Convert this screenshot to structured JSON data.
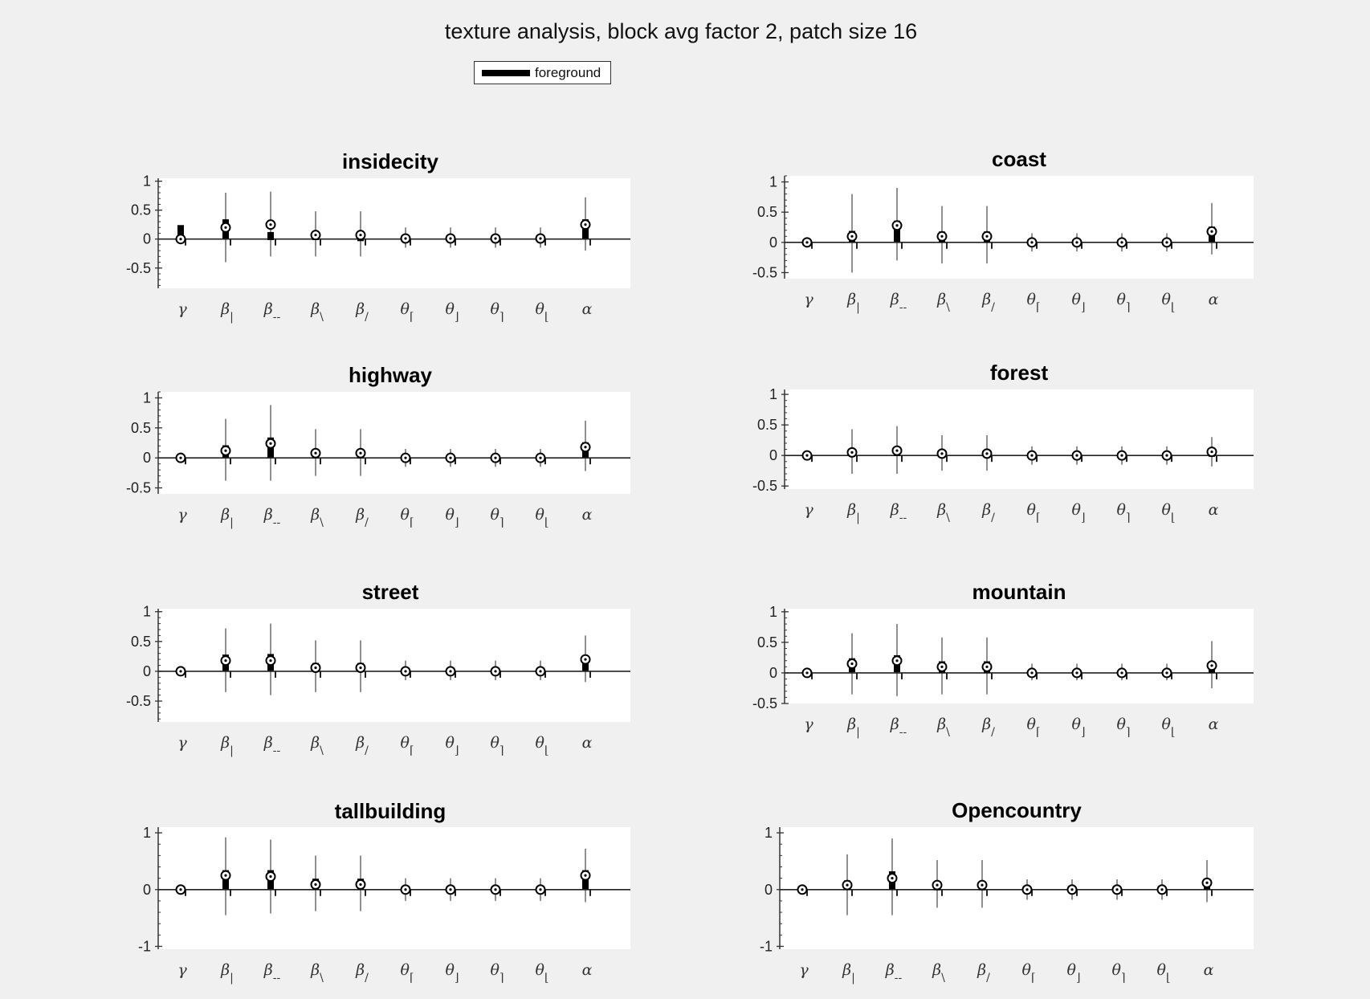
{
  "figure_title": "texture analysis, block avg factor 2, patch size 16",
  "legend": {
    "label": "foreground",
    "color": "#000000"
  },
  "categories": [
    {
      "base": "γ",
      "sub": ""
    },
    {
      "base": "β",
      "sub": "|"
    },
    {
      "base": "β",
      "sub": "--"
    },
    {
      "base": "β",
      "sub": "\\"
    },
    {
      "base": "β",
      "sub": "/"
    },
    {
      "base": "θ",
      "sub": "⌈"
    },
    {
      "base": "θ",
      "sub": "⌋"
    },
    {
      "base": "θ",
      "sub": "⌉"
    },
    {
      "base": "θ",
      "sub": "⌊"
    },
    {
      "base": "α",
      "sub": ""
    }
  ],
  "chart_data": [
    {
      "type": "scatter",
      "title": "insidecity",
      "ylim": [
        -0.85,
        1.05
      ],
      "yticks": [
        1,
        0.5,
        0,
        -0.5
      ],
      "square": [
        0.2,
        0.3,
        0.08,
        0.08,
        0.02,
        0.02,
        0.02,
        0.02,
        0.02,
        0.3
      ],
      "circle": [
        0.0,
        0.2,
        0.25,
        0.07,
        0.07,
        0.01,
        0.01,
        0.01,
        0.01,
        0.25
      ],
      "err_low": [
        -0.05,
        -0.4,
        -0.3,
        -0.3,
        -0.3,
        -0.15,
        -0.15,
        -0.15,
        -0.15,
        -0.2
      ],
      "err_high": [
        0.05,
        0.8,
        0.82,
        0.48,
        0.48,
        0.2,
        0.2,
        0.2,
        0.2,
        0.72
      ]
    },
    {
      "type": "scatter",
      "title": "coast",
      "ylim": [
        -0.6,
        1.1
      ],
      "yticks": [
        1,
        0.5,
        0,
        -0.5
      ],
      "square": [
        0.0,
        0.15,
        0.32,
        0.14,
        0.14,
        0.01,
        0.01,
        0.01,
        0.01,
        0.22
      ],
      "circle": [
        0.0,
        0.1,
        0.28,
        0.1,
        0.1,
        0.0,
        0.0,
        0.0,
        0.0,
        0.18
      ],
      "err_low": [
        -0.05,
        -0.5,
        -0.3,
        -0.35,
        -0.35,
        -0.15,
        -0.15,
        -0.15,
        -0.15,
        -0.2
      ],
      "err_high": [
        0.05,
        0.8,
        0.9,
        0.6,
        0.6,
        0.15,
        0.15,
        0.15,
        0.15,
        0.65
      ]
    },
    {
      "type": "scatter",
      "title": "highway",
      "ylim": [
        -0.6,
        1.1
      ],
      "yticks": [
        1,
        0.5,
        0,
        -0.5
      ],
      "square": [
        0.0,
        0.17,
        0.3,
        0.1,
        0.1,
        0.01,
        0.01,
        0.01,
        0.01,
        0.22
      ],
      "circle": [
        0.0,
        0.12,
        0.24,
        0.08,
        0.08,
        0.0,
        0.0,
        0.0,
        0.0,
        0.18
      ],
      "err_low": [
        -0.05,
        -0.38,
        -0.38,
        -0.3,
        -0.3,
        -0.15,
        -0.15,
        -0.15,
        -0.15,
        -0.22
      ],
      "err_high": [
        0.05,
        0.65,
        0.88,
        0.48,
        0.48,
        0.15,
        0.15,
        0.15,
        0.15,
        0.62
      ]
    },
    {
      "type": "scatter",
      "title": "forest",
      "ylim": [
        -0.55,
        1.08
      ],
      "yticks": [
        1,
        0.5,
        0,
        -0.5
      ],
      "square": [
        0.0,
        0.06,
        0.1,
        0.04,
        0.04,
        0.0,
        0.0,
        0.0,
        0.0,
        0.06
      ],
      "circle": [
        0.0,
        0.05,
        0.08,
        0.03,
        0.03,
        0.0,
        0.0,
        0.0,
        0.0,
        0.06
      ],
      "err_low": [
        -0.03,
        -0.3,
        -0.3,
        -0.25,
        -0.25,
        -0.15,
        -0.15,
        -0.15,
        -0.15,
        -0.18
      ],
      "err_high": [
        0.03,
        0.43,
        0.48,
        0.33,
        0.33,
        0.15,
        0.15,
        0.15,
        0.15,
        0.3
      ]
    },
    {
      "type": "scatter",
      "title": "street",
      "ylim": [
        -0.85,
        1.05
      ],
      "yticks": [
        1,
        0.5,
        0,
        -0.5
      ],
      "square": [
        0.0,
        0.24,
        0.25,
        0.1,
        0.1,
        0.01,
        0.01,
        0.01,
        0.01,
        0.22
      ],
      "circle": [
        0.0,
        0.18,
        0.18,
        0.06,
        0.06,
        0.0,
        0.0,
        0.0,
        0.0,
        0.2
      ],
      "err_low": [
        -0.05,
        -0.35,
        -0.4,
        -0.35,
        -0.35,
        -0.15,
        -0.15,
        -0.15,
        -0.15,
        -0.18
      ],
      "err_high": [
        0.05,
        0.72,
        0.8,
        0.52,
        0.52,
        0.18,
        0.18,
        0.18,
        0.18,
        0.6
      ]
    },
    {
      "type": "scatter",
      "title": "mountain",
      "ylim": [
        -0.5,
        1.05
      ],
      "yticks": [
        1,
        0.5,
        0,
        -0.5
      ],
      "square": [
        0.0,
        0.2,
        0.25,
        0.15,
        0.15,
        0.0,
        0.0,
        0.0,
        0.0,
        0.15
      ],
      "circle": [
        0.0,
        0.15,
        0.2,
        0.1,
        0.1,
        0.0,
        0.0,
        0.0,
        0.0,
        0.12
      ],
      "err_low": [
        -0.03,
        -0.35,
        -0.38,
        -0.35,
        -0.35,
        -0.12,
        -0.12,
        -0.12,
        -0.12,
        -0.25
      ],
      "err_high": [
        0.03,
        0.65,
        0.8,
        0.58,
        0.58,
        0.15,
        0.15,
        0.15,
        0.15,
        0.52
      ]
    },
    {
      "type": "scatter",
      "title": "tallbuilding",
      "ylim": [
        -1.05,
        1.1
      ],
      "yticks": [
        1,
        0,
        -1
      ],
      "square": [
        0.0,
        0.3,
        0.3,
        0.15,
        0.15,
        0.01,
        0.01,
        0.01,
        0.01,
        0.3
      ],
      "circle": [
        0.0,
        0.25,
        0.23,
        0.09,
        0.09,
        0.0,
        0.0,
        0.0,
        0.0,
        0.25
      ],
      "err_low": [
        -0.05,
        -0.45,
        -0.42,
        -0.38,
        -0.38,
        -0.2,
        -0.2,
        -0.2,
        -0.2,
        -0.22
      ],
      "err_high": [
        0.05,
        0.92,
        0.88,
        0.6,
        0.6,
        0.2,
        0.2,
        0.2,
        0.2,
        0.72
      ]
    },
    {
      "type": "scatter",
      "title": "Opencountry",
      "ylim": [
        -1.05,
        1.1
      ],
      "yticks": [
        1,
        0,
        -1
      ],
      "square": [
        0.0,
        0.12,
        0.28,
        0.1,
        0.1,
        0.0,
        0.0,
        0.0,
        0.0,
        0.15
      ],
      "circle": [
        0.0,
        0.08,
        0.2,
        0.08,
        0.08,
        0.0,
        0.0,
        0.0,
        0.0,
        0.12
      ],
      "err_low": [
        -0.05,
        -0.45,
        -0.45,
        -0.32,
        -0.32,
        -0.18,
        -0.18,
        -0.18,
        -0.18,
        -0.22
      ],
      "err_high": [
        0.05,
        0.62,
        0.9,
        0.52,
        0.52,
        0.18,
        0.18,
        0.18,
        0.18,
        0.52
      ]
    }
  ]
}
